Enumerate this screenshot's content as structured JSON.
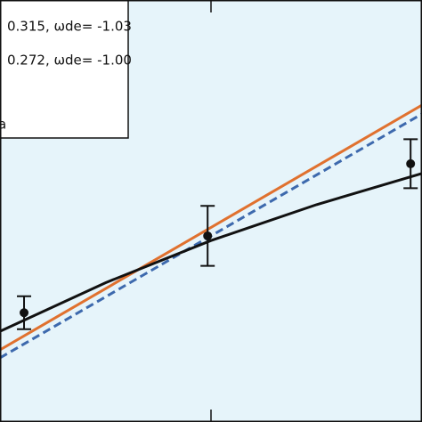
{
  "chart_data": {
    "type": "line",
    "xlim": [
      0,
      1
    ],
    "ylim": [
      0,
      1
    ],
    "background": "#e6f4fa",
    "series": [
      {
        "name": "0.315,  ωde= -1.03",
        "color": "#e0712f",
        "dashed": false,
        "x": [
          0,
          1
        ],
        "values": [
          0.171,
          0.751
        ]
      },
      {
        "name": "0.272,  ωde= -1.00",
        "color": "#3d69ad",
        "dashed": true,
        "x": [
          0,
          1
        ],
        "values": [
          0.152,
          0.73
        ]
      },
      {
        "color": "#111111",
        "dashed": false,
        "x": [
          0,
          0.25,
          0.5,
          0.75,
          1
        ],
        "values": [
          0.215,
          0.33,
          0.43,
          0.515,
          0.589
        ]
      }
    ],
    "points": {
      "name": "a",
      "color": "#111111",
      "x": [
        0.057,
        0.492,
        0.973
      ],
      "values": [
        0.259,
        0.441,
        0.612
      ],
      "errors": [
        0.039,
        0.071,
        0.058
      ]
    }
  }
}
